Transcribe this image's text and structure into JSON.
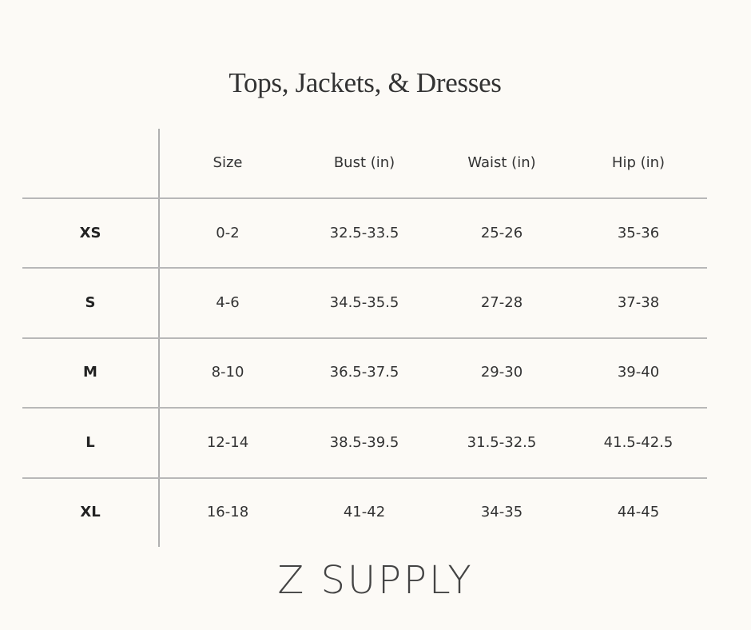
{
  "title": "Tops, Jackets, & Dresses",
  "table": {
    "headers": [
      "",
      "Size",
      "Bust (in)",
      "Waist (in)",
      "Hip (in)"
    ],
    "rows": [
      [
        "XS",
        "0-2",
        "32.5-33.5",
        "25-26",
        "35-36"
      ],
      [
        "S",
        "4-6",
        "34.5-35.5",
        "27-28",
        "37-38"
      ],
      [
        "M",
        "8-10",
        "36.5-37.5",
        "29-30",
        "39-40"
      ],
      [
        "L",
        "12-14",
        "38.5-39.5",
        "31.5-32.5",
        "41.5-42.5"
      ],
      [
        "XL",
        "16-18",
        "41-42",
        "34-35",
        "44-45"
      ]
    ]
  },
  "brand": "Z SUPPLY",
  "colors": {
    "background": "#fcfaf6",
    "rule": "#b8b8b8",
    "text": "#333333"
  }
}
